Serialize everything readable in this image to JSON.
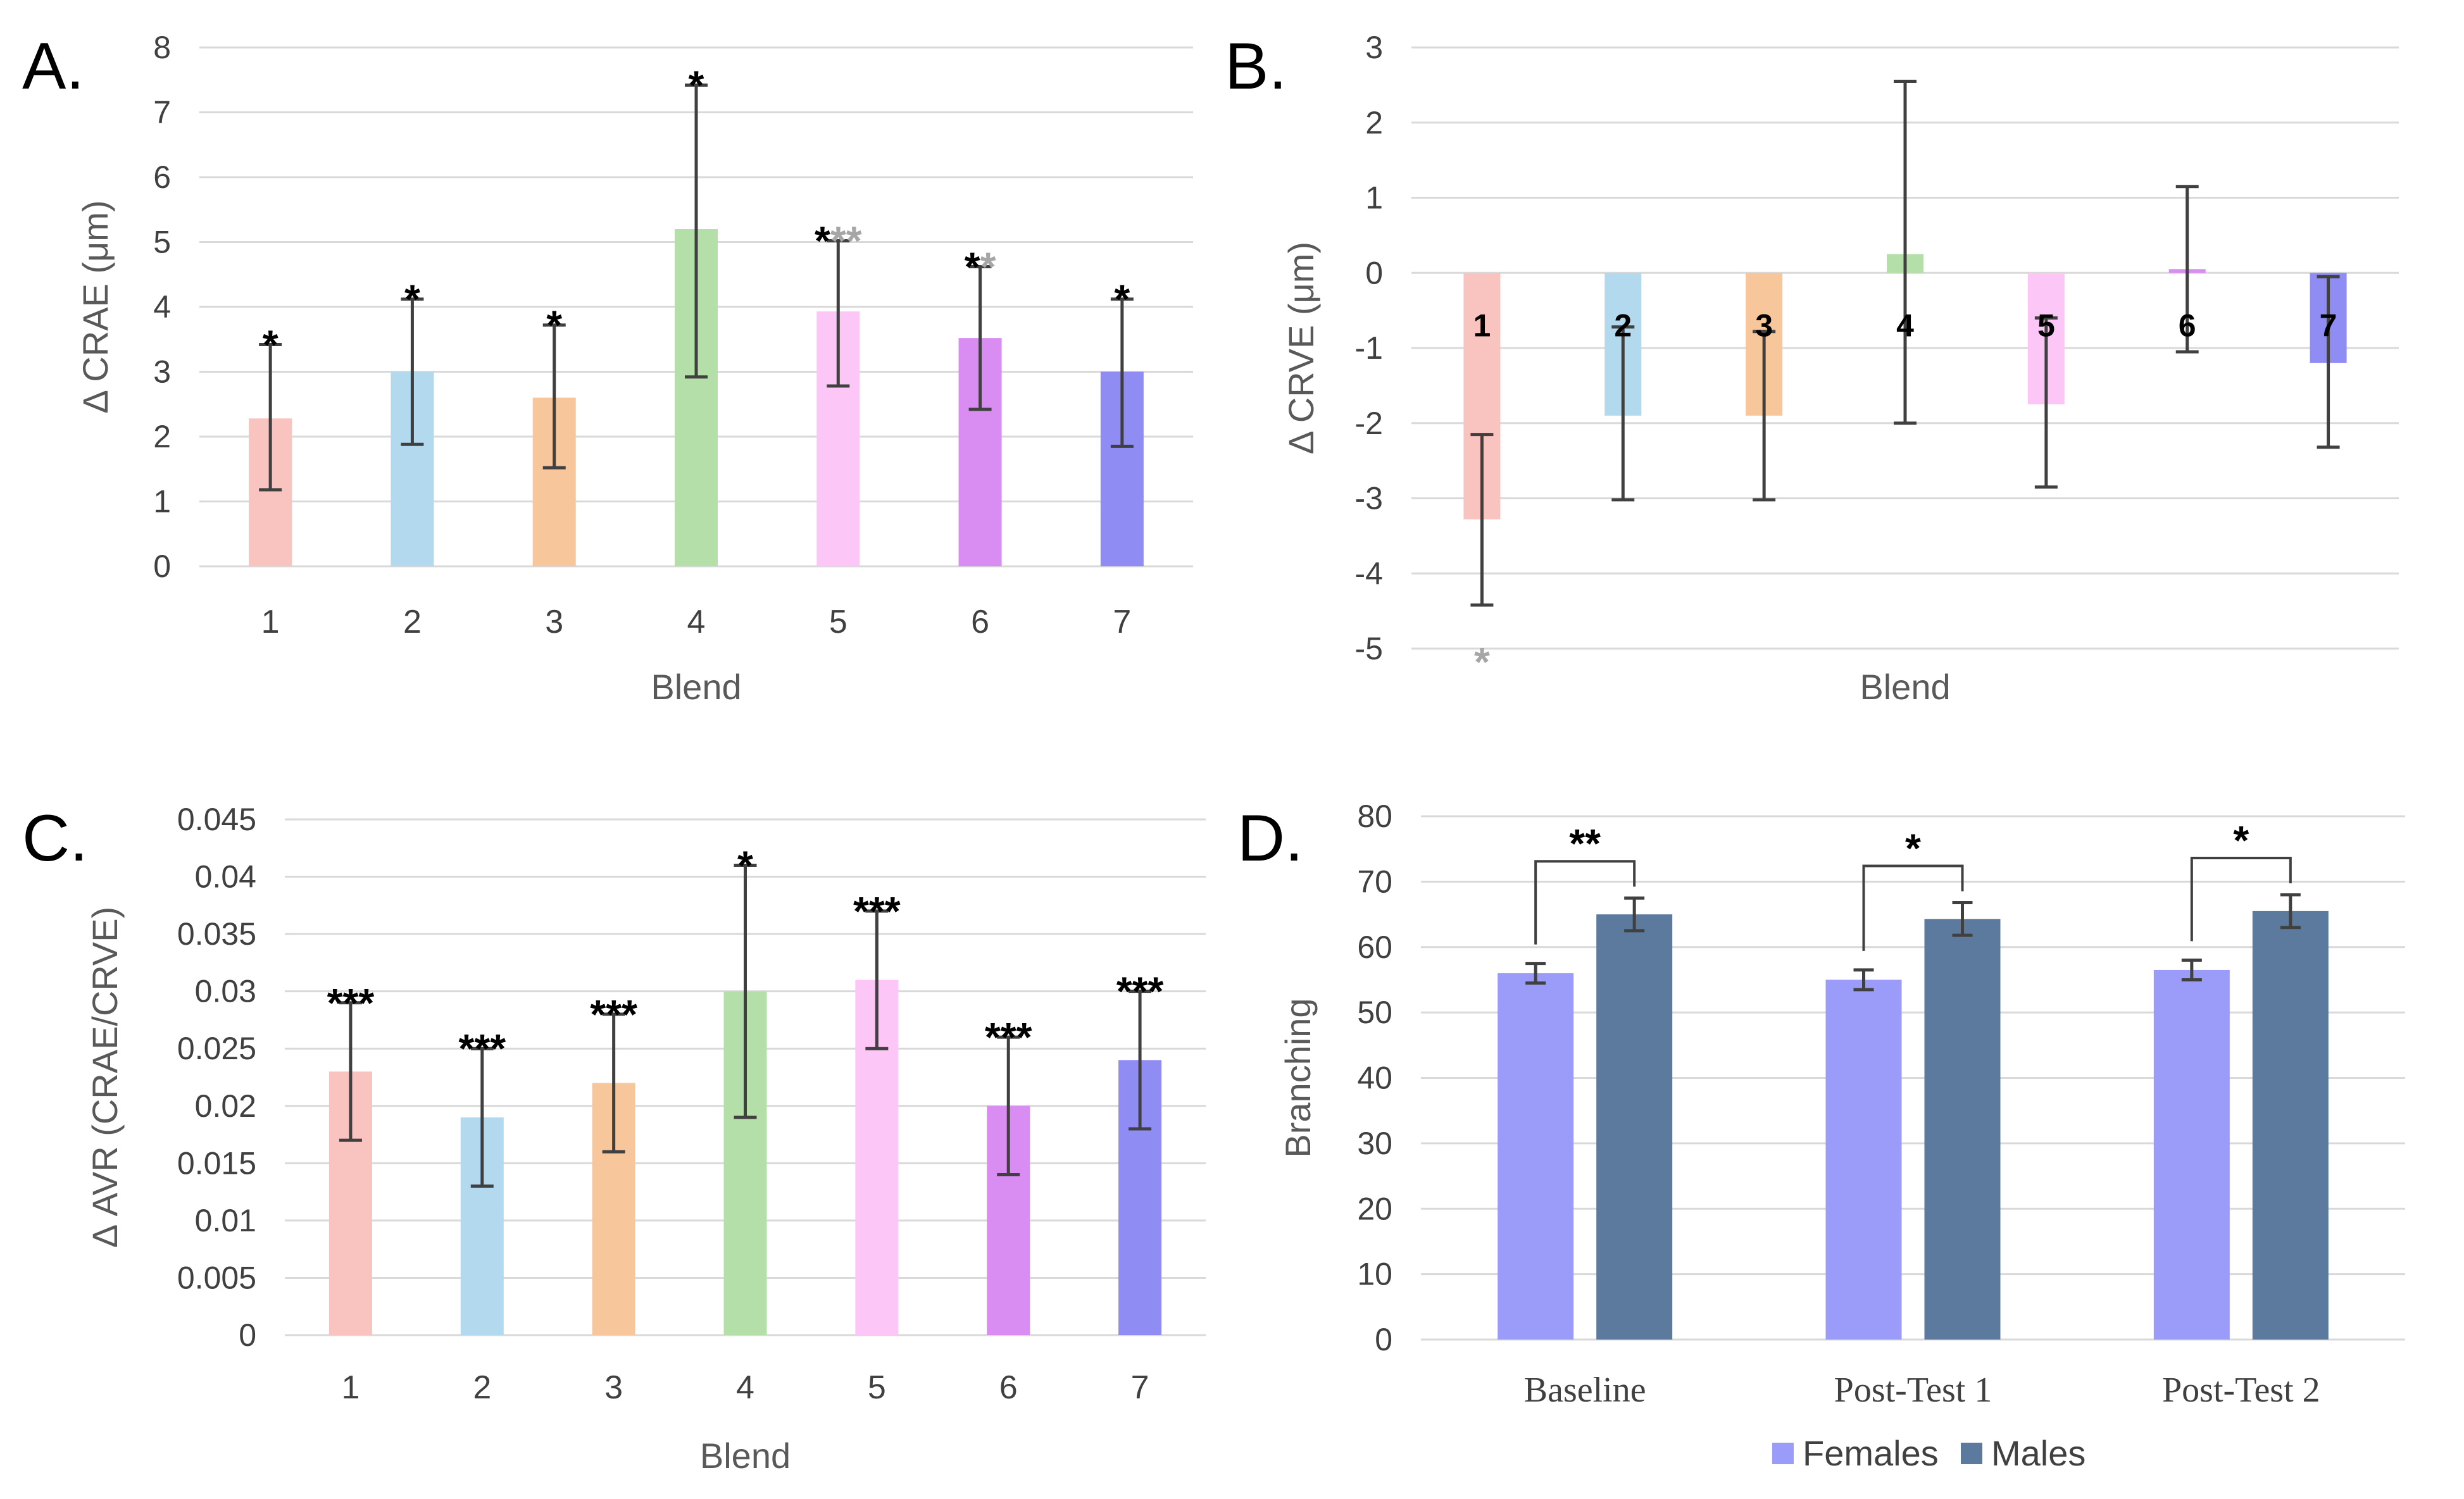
{
  "chart_data": [
    {
      "panel": "A.",
      "type": "bar",
      "categories": [
        "1",
        "2",
        "3",
        "4",
        "5",
        "6",
        "7"
      ],
      "values": [
        2.28,
        3.0,
        2.6,
        5.2,
        3.93,
        3.52,
        3.0
      ],
      "err_low": [
        1.18,
        1.88,
        1.52,
        2.92,
        2.78,
        2.42,
        1.85
      ],
      "err_high": [
        3.42,
        4.12,
        3.72,
        7.42,
        5.02,
        4.62,
        4.12
      ],
      "colors": [
        "#f9c3c0",
        "#b3d9ee",
        "#f8c69b",
        "#b5dfa8",
        "#fcc7f7",
        "#d98cf2",
        "#8f8cf4"
      ],
      "annotations": [
        [
          {
            "text": "*",
            "color": "#000000"
          }
        ],
        [
          {
            "text": "*",
            "color": "#000000"
          }
        ],
        [
          {
            "text": "*",
            "color": "#000000"
          }
        ],
        [
          {
            "text": "*",
            "color": "#000000"
          }
        ],
        [
          {
            "text": "*",
            "color": "#000000"
          },
          {
            "text": "**",
            "color": "#a6a6a6"
          }
        ],
        [
          {
            "text": "*",
            "color": "#000000"
          },
          {
            "text": "*",
            "color": "#a6a6a6"
          }
        ],
        [
          {
            "text": "*",
            "color": "#000000"
          }
        ]
      ],
      "ylim": [
        0,
        8
      ],
      "yticks": [
        "0",
        "1",
        "2",
        "3",
        "4",
        "5",
        "6",
        "7",
        "8"
      ],
      "xlabel": "Blend",
      "ylabel": "Δ CRAE (μm)"
    },
    {
      "panel": "B.",
      "type": "bar",
      "categories": [
        "1",
        "2",
        "3",
        "4",
        "5",
        "6",
        "7"
      ],
      "values": [
        -3.28,
        -1.9,
        -1.9,
        0.25,
        -1.75,
        0.05,
        -1.2
      ],
      "err_low": [
        -4.42,
        -3.02,
        -3.02,
        -2.0,
        -2.85,
        -1.05,
        -2.32
      ],
      "err_high": [
        -2.15,
        -0.72,
        -0.78,
        2.55,
        -0.6,
        1.15,
        -0.05
      ],
      "colors": [
        "#f9c3c0",
        "#b3d9ee",
        "#f8c69b",
        "#b5dfa8",
        "#fcc7f7",
        "#d98cf2",
        "#8f8cf4"
      ],
      "bar_labels": [
        "1",
        "2",
        "3",
        "4",
        "5",
        "6",
        "7"
      ],
      "annotations": [
        [
          {
            "text": "*",
            "color": "#a6a6a6"
          }
        ],
        [],
        [],
        [],
        [],
        [],
        []
      ],
      "ylim": [
        -5,
        3
      ],
      "yticks": [
        "-5",
        "-4",
        "-3",
        "-2",
        "-1",
        "0",
        "1",
        "2",
        "3"
      ],
      "xlabel": "Blend",
      "ylabel": "Δ CRVE (μm)"
    },
    {
      "panel": "C.",
      "type": "bar",
      "categories": [
        "1",
        "2",
        "3",
        "4",
        "5",
        "6",
        "7"
      ],
      "values": [
        0.023,
        0.019,
        0.022,
        0.03,
        0.031,
        0.02,
        0.024
      ],
      "err_low": [
        0.017,
        0.013,
        0.016,
        0.019,
        0.025,
        0.014,
        0.018
      ],
      "err_high": [
        0.029,
        0.025,
        0.028,
        0.041,
        0.037,
        0.026,
        0.03
      ],
      "colors": [
        "#f9c3c0",
        "#b3d9ee",
        "#f8c69b",
        "#b5dfa8",
        "#fcc7f7",
        "#d98cf2",
        "#8f8cf4"
      ],
      "annotations": [
        [
          {
            "text": "***",
            "color": "#000000"
          }
        ],
        [
          {
            "text": "***",
            "color": "#000000"
          }
        ],
        [
          {
            "text": "***",
            "color": "#000000"
          }
        ],
        [
          {
            "text": "*",
            "color": "#000000"
          }
        ],
        [
          {
            "text": "***",
            "color": "#000000"
          }
        ],
        [
          {
            "text": "***",
            "color": "#000000"
          }
        ],
        [
          {
            "text": "***",
            "color": "#000000"
          }
        ]
      ],
      "ylim": [
        0,
        0.045
      ],
      "yticks": [
        "0",
        "0.005",
        "0.01",
        "0.015",
        "0.02",
        "0.025",
        "0.03",
        "0.035",
        "0.04",
        "0.045"
      ],
      "xlabel": "Blend",
      "ylabel": "Δ AVR (CRAE/CRVE)"
    },
    {
      "panel": "D.",
      "type": "bar",
      "categories": [
        "Baseline",
        "Post-Test 1",
        "Post-Test 2"
      ],
      "series": [
        {
          "name": "Females",
          "color": "#9b9bfa",
          "values": [
            56,
            55,
            56.5
          ],
          "err": [
            1.5,
            1.5,
            1.5
          ]
        },
        {
          "name": "Males",
          "color": "#5b7a9e",
          "values": [
            65,
            64.3,
            65.5
          ],
          "err": [
            2.5,
            2.5,
            2.5
          ]
        }
      ],
      "significance": [
        "**",
        "*",
        "*"
      ],
      "ylim": [
        0,
        80
      ],
      "yticks": [
        "0",
        "10",
        "20",
        "30",
        "40",
        "50",
        "60",
        "70",
        "80"
      ],
      "xlabel": "",
      "ylabel": "Branching",
      "legend": "bottom"
    }
  ]
}
